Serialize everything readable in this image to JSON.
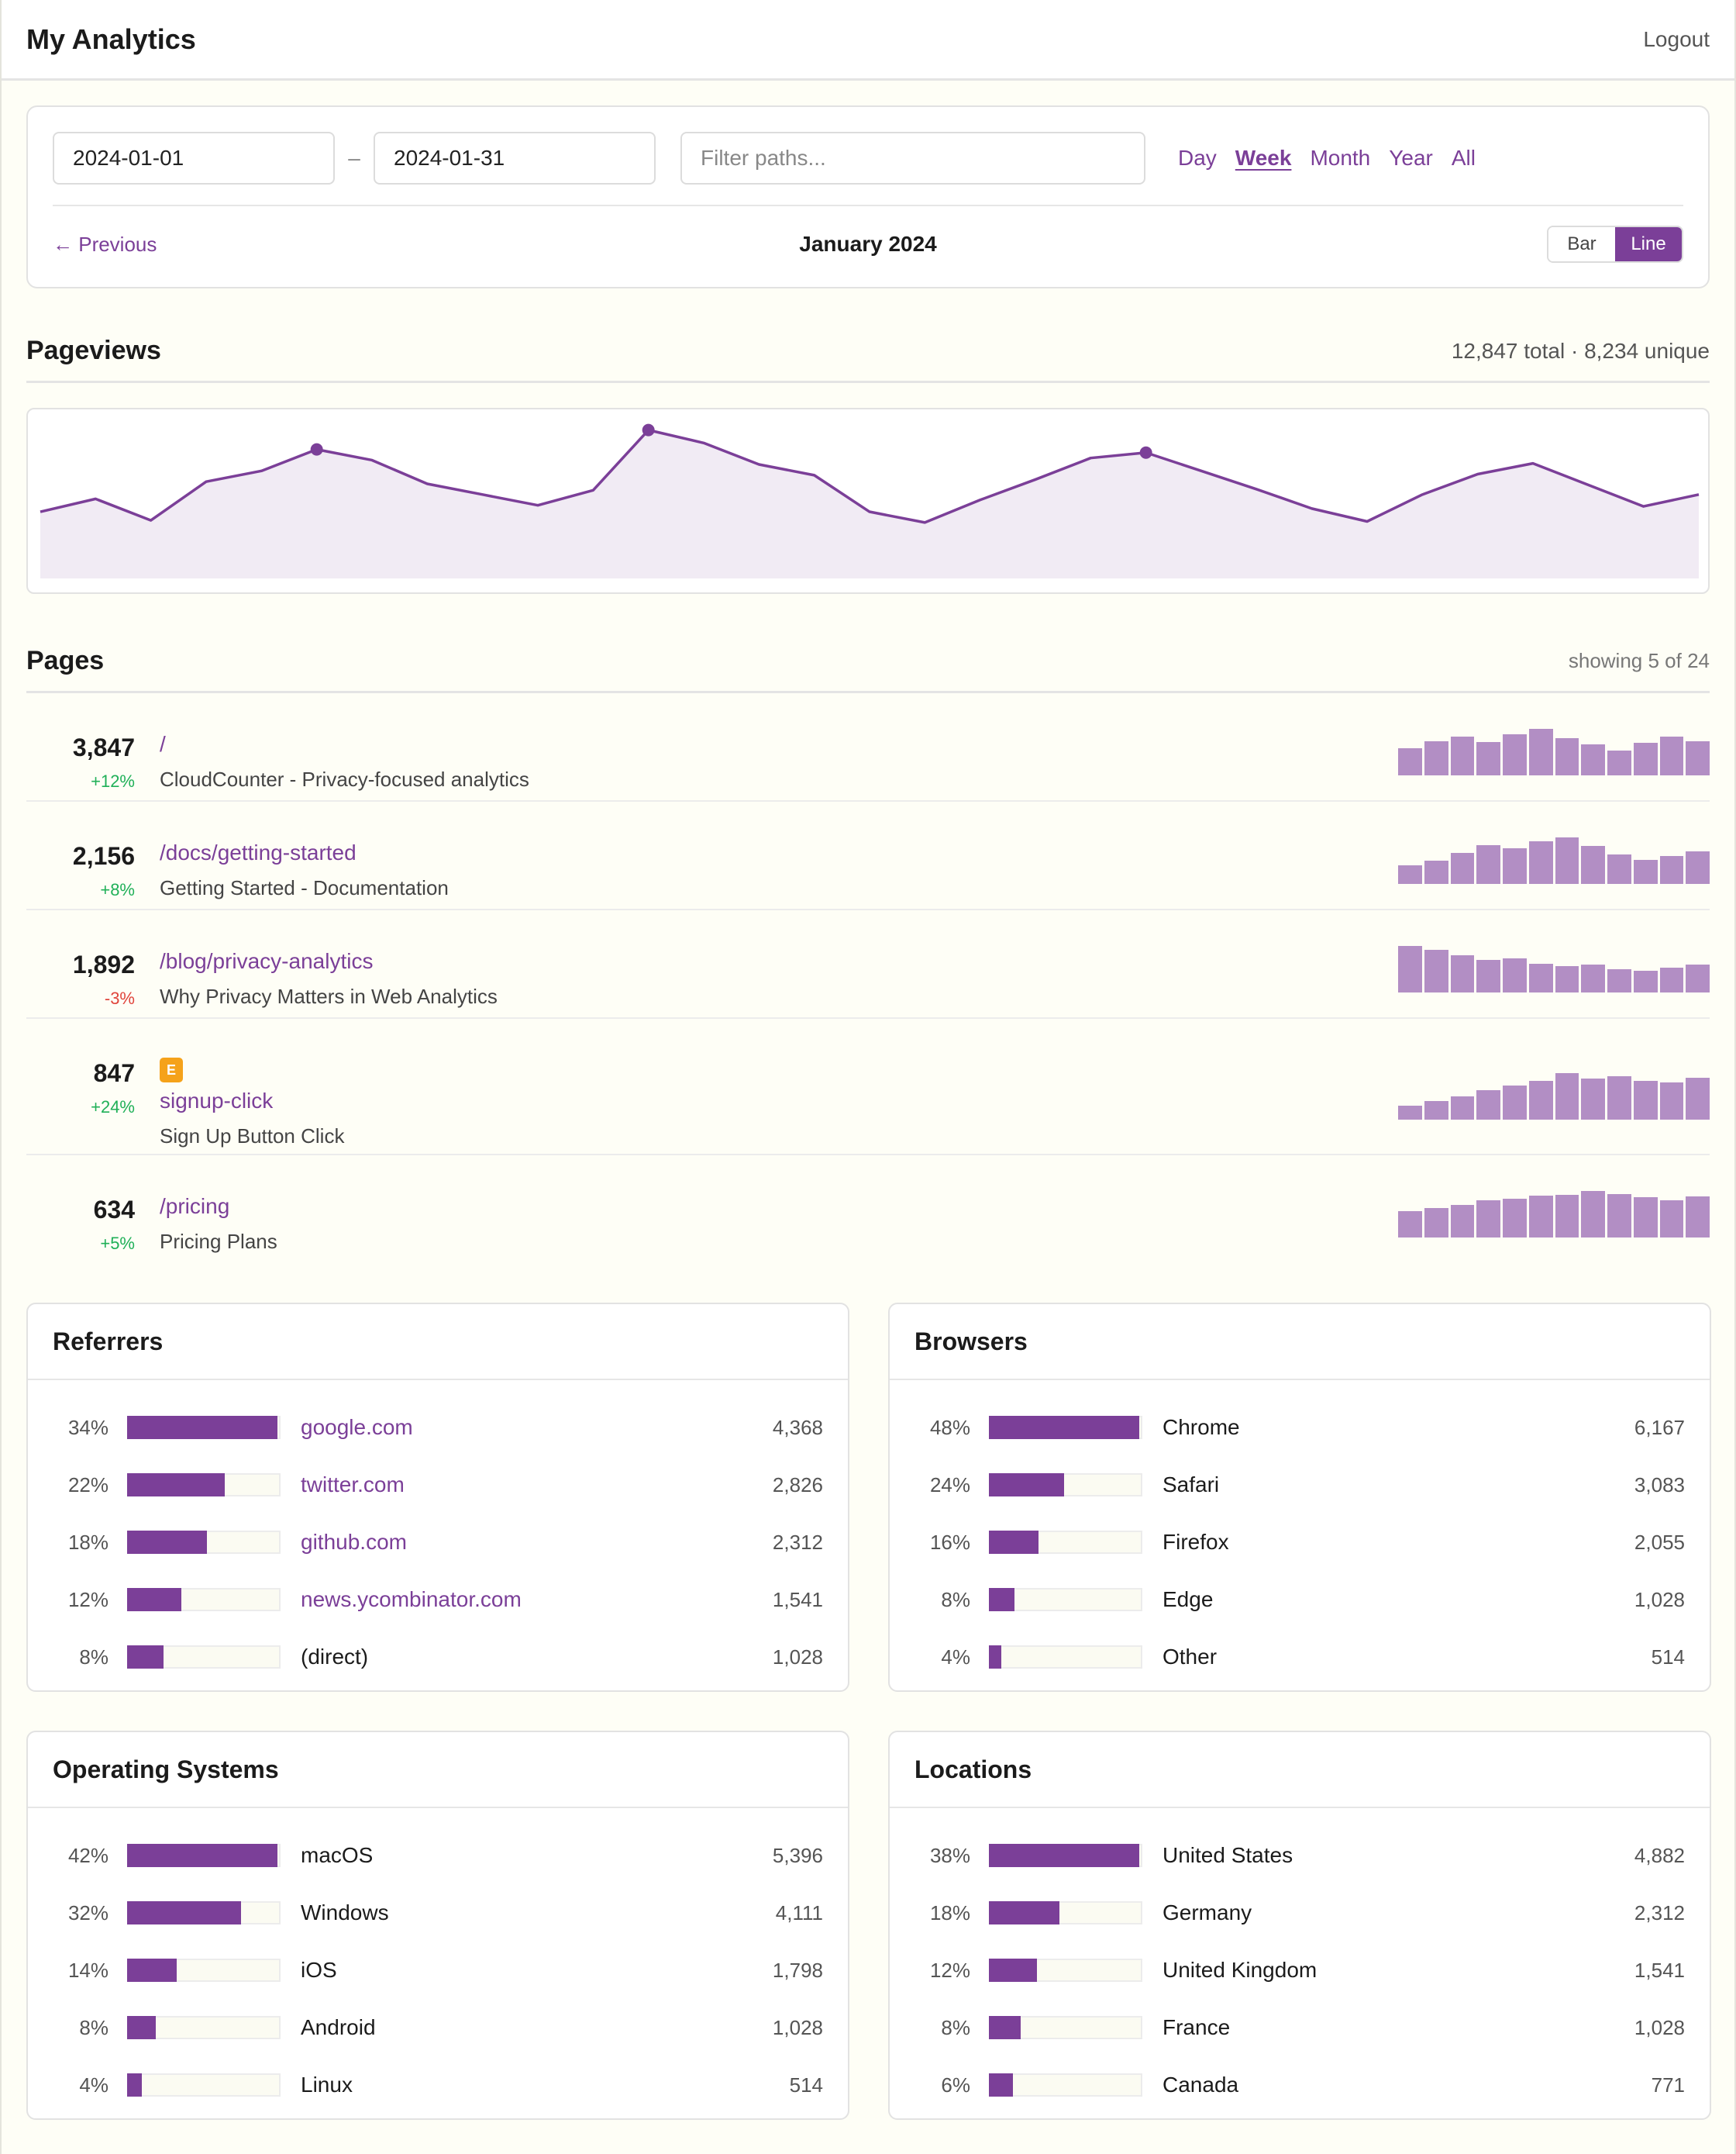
{
  "app": {
    "title": "My Analytics",
    "logout_label": "Logout"
  },
  "controls": {
    "date_from": "2024-01-01",
    "separator": "–",
    "date_to": "2024-01-31",
    "filter_placeholder": "Filter paths...",
    "periods": [
      "Day",
      "Week",
      "Month",
      "Year",
      "All"
    ],
    "active_period": "Week",
    "previous_label": "← Previous",
    "period_label": "January 2024",
    "chart_types": [
      "Bar",
      "Line"
    ],
    "active_chart_type": "Line"
  },
  "pageviews": {
    "title": "Pageviews",
    "summary": "12,847 total · 8,234 unique"
  },
  "chart_data": {
    "type": "area",
    "values": [
      62,
      74,
      54,
      90,
      100,
      120,
      110,
      88,
      78,
      68,
      82,
      138,
      126,
      106,
      96,
      62,
      52,
      73,
      92,
      112,
      117,
      100,
      83,
      65,
      53,
      78,
      97,
      107,
      87,
      67,
      78
    ],
    "highlighted_indices": [
      5,
      11,
      20
    ],
    "ylim": [
      0,
      150
    ],
    "color": "#7b3f98",
    "fill": "#f1ebf4"
  },
  "pages": {
    "title": "Pages",
    "meta": "showing 5 of 24",
    "rows": [
      {
        "count": "3,847",
        "change": "+12%",
        "trend": "pos",
        "path": "/",
        "title": "CloudCounter - Privacy-focused analytics",
        "event": false,
        "spark": [
          0.58,
          0.74,
          0.84,
          0.72,
          0.88,
          1.0,
          0.8,
          0.66,
          0.54,
          0.7,
          0.84,
          0.74
        ]
      },
      {
        "count": "2,156",
        "change": "+8%",
        "trend": "pos",
        "path": "/docs/getting-started",
        "title": "Getting Started - Documentation",
        "event": false,
        "spark": [
          0.4,
          0.5,
          0.66,
          0.84,
          0.76,
          0.92,
          1.0,
          0.82,
          0.64,
          0.52,
          0.6,
          0.7
        ]
      },
      {
        "count": "1,892",
        "change": "-3%",
        "trend": "neg",
        "path": "/blog/privacy-analytics",
        "title": "Why Privacy Matters in Web Analytics",
        "event": false,
        "spark": [
          1.0,
          0.92,
          0.8,
          0.7,
          0.74,
          0.62,
          0.56,
          0.6,
          0.5,
          0.46,
          0.54,
          0.6
        ]
      },
      {
        "count": "847",
        "change": "+24%",
        "trend": "pos",
        "path": "signup-click",
        "title": "Sign Up Button Click",
        "event": true,
        "event_badge": "E",
        "spark": [
          0.3,
          0.4,
          0.5,
          0.64,
          0.74,
          0.84,
          1.0,
          0.88,
          0.94,
          0.84,
          0.8,
          0.9
        ]
      },
      {
        "count": "634",
        "change": "+5%",
        "trend": "pos",
        "path": "/pricing",
        "title": "Pricing Plans",
        "event": false,
        "spark": [
          0.56,
          0.64,
          0.7,
          0.8,
          0.84,
          0.9,
          0.92,
          1.0,
          0.94,
          0.86,
          0.8,
          0.88
        ]
      }
    ]
  },
  "cards": [
    {
      "title": "Referrers",
      "link": true,
      "rows": [
        {
          "pct": "34%",
          "fill": 1.0,
          "label": "google.com",
          "value": "4,368"
        },
        {
          "pct": "22%",
          "fill": 0.65,
          "label": "twitter.com",
          "value": "2,826"
        },
        {
          "pct": "18%",
          "fill": 0.53,
          "label": "github.com",
          "value": "2,312"
        },
        {
          "pct": "12%",
          "fill": 0.36,
          "label": "news.ycombinator.com",
          "value": "1,541"
        },
        {
          "pct": "8%",
          "fill": 0.24,
          "label": "(direct)",
          "value": "1,028",
          "plain": true
        }
      ]
    },
    {
      "title": "Browsers",
      "link": false,
      "rows": [
        {
          "pct": "48%",
          "fill": 1.0,
          "label": "Chrome",
          "value": "6,167"
        },
        {
          "pct": "24%",
          "fill": 0.5,
          "label": "Safari",
          "value": "3,083"
        },
        {
          "pct": "16%",
          "fill": 0.33,
          "label": "Firefox",
          "value": "2,055"
        },
        {
          "pct": "8%",
          "fill": 0.17,
          "label": "Edge",
          "value": "1,028"
        },
        {
          "pct": "4%",
          "fill": 0.08,
          "label": "Other",
          "value": "514"
        }
      ]
    },
    {
      "title": "Operating Systems",
      "link": false,
      "rows": [
        {
          "pct": "42%",
          "fill": 1.0,
          "label": "macOS",
          "value": "5,396"
        },
        {
          "pct": "32%",
          "fill": 0.76,
          "label": "Windows",
          "value": "4,111"
        },
        {
          "pct": "14%",
          "fill": 0.33,
          "label": "iOS",
          "value": "1,798"
        },
        {
          "pct": "8%",
          "fill": 0.19,
          "label": "Android",
          "value": "1,028"
        },
        {
          "pct": "4%",
          "fill": 0.1,
          "label": "Linux",
          "value": "514"
        }
      ]
    },
    {
      "title": "Locations",
      "link": false,
      "rows": [
        {
          "pct": "38%",
          "fill": 1.0,
          "label": "United States",
          "value": "4,882"
        },
        {
          "pct": "18%",
          "fill": 0.47,
          "label": "Germany",
          "value": "2,312"
        },
        {
          "pct": "12%",
          "fill": 0.32,
          "label": "United Kingdom",
          "value": "1,541"
        },
        {
          "pct": "8%",
          "fill": 0.21,
          "label": "France",
          "value": "1,028"
        },
        {
          "pct": "6%",
          "fill": 0.16,
          "label": "Canada",
          "value": "771"
        }
      ]
    }
  ]
}
